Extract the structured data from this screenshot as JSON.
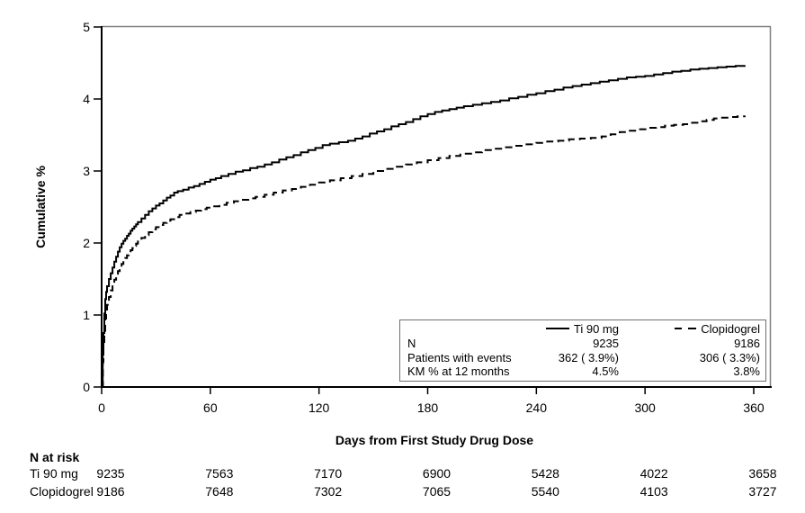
{
  "figure_type": "kaplan-meier-cumulative-incidence",
  "y_axis": {
    "label": "Cumulative %",
    "ticks": [
      "0",
      "1",
      "2",
      "3",
      "4",
      "5"
    ],
    "min": 0,
    "max": 5
  },
  "x_axis": {
    "label": "Days from First Study Drug Dose",
    "ticks": [
      "0",
      "60",
      "120",
      "180",
      "240",
      "300",
      "360"
    ],
    "min": 0,
    "max": 370
  },
  "legend": {
    "row_labels": [
      "N",
      "Patients with events",
      "KM % at 12 months"
    ],
    "series": [
      {
        "name": "Ti 90 mg",
        "line_style": "solid",
        "n": "9235",
        "events": "362 ( 3.9%)",
        "km_12m": "4.5%"
      },
      {
        "name": "Clopidogrel",
        "line_style": "dashed",
        "n": "9186",
        "events": "306 ( 3.3%)",
        "km_12m": "3.8%"
      }
    ]
  },
  "n_at_risk": {
    "title": "N at risk",
    "days": [
      0,
      60,
      120,
      180,
      240,
      300,
      360
    ],
    "rows": [
      {
        "label": "Ti 90 mg",
        "values": [
          "9235",
          "7563",
          "7170",
          "6900",
          "5428",
          "4022",
          "3658"
        ]
      },
      {
        "label": "Clopidogrel",
        "values": [
          "9186",
          "7648",
          "7302",
          "7065",
          "5540",
          "4103",
          "3727"
        ]
      }
    ]
  },
  "colors": {
    "curves": "#000000",
    "axis": "#000000",
    "frame": "#808080",
    "legend_border": "#6e6e6e",
    "background": "#ffffff"
  },
  "chart_data": {
    "type": "line",
    "subtype": "kaplan-meier-step",
    "title": "",
    "xlabel": "Days from First Study Drug Dose",
    "ylabel": "Cumulative %",
    "xlim": [
      0,
      370
    ],
    "ylim": [
      0,
      5
    ],
    "x_ticks": [
      0,
      60,
      120,
      180,
      240,
      300,
      360
    ],
    "y_ticks": [
      0,
      1,
      2,
      3,
      4,
      5
    ],
    "grid": false,
    "legend_position": "inside-bottom-right",
    "series": [
      {
        "name": "Ti 90 mg",
        "style": "solid",
        "color": "#000000",
        "n": 9235,
        "patients_with_events": 362,
        "events_pct": 3.9,
        "km_pct_12_months": 4.5,
        "points": [
          [
            0,
            0
          ],
          [
            0.6,
            0.45
          ],
          [
            1,
            0.75
          ],
          [
            1.5,
            1.02
          ],
          [
            2,
            1.22
          ],
          [
            2.5,
            1.32
          ],
          [
            3,
            1.4
          ],
          [
            4,
            1.5
          ],
          [
            5,
            1.58
          ],
          [
            6,
            1.66
          ],
          [
            7,
            1.74
          ],
          [
            8,
            1.81
          ],
          [
            9,
            1.88
          ],
          [
            10,
            1.94
          ],
          [
            11,
            1.99
          ],
          [
            12,
            2.03
          ],
          [
            13,
            2.06
          ],
          [
            14,
            2.1
          ],
          [
            15,
            2.13
          ],
          [
            16,
            2.17
          ],
          [
            17,
            2.2
          ],
          [
            18,
            2.23
          ],
          [
            19,
            2.26
          ],
          [
            20,
            2.29
          ],
          [
            22,
            2.34
          ],
          [
            24,
            2.39
          ],
          [
            26,
            2.44
          ],
          [
            28,
            2.48
          ],
          [
            30,
            2.52
          ],
          [
            32,
            2.55
          ],
          [
            34,
            2.59
          ],
          [
            36,
            2.63
          ],
          [
            38,
            2.66
          ],
          [
            40,
            2.7
          ],
          [
            42,
            2.72
          ],
          [
            45,
            2.74
          ],
          [
            48,
            2.77
          ],
          [
            51,
            2.79
          ],
          [
            54,
            2.82
          ],
          [
            57,
            2.85
          ],
          [
            60,
            2.88
          ],
          [
            63,
            2.9
          ],
          [
            66,
            2.93
          ],
          [
            70,
            2.96
          ],
          [
            74,
            2.99
          ],
          [
            78,
            3.01
          ],
          [
            82,
            3.04
          ],
          [
            86,
            3.06
          ],
          [
            90,
            3.09
          ],
          [
            94,
            3.12
          ],
          [
            98,
            3.16
          ],
          [
            102,
            3.19
          ],
          [
            106,
            3.22
          ],
          [
            110,
            3.26
          ],
          [
            114,
            3.29
          ],
          [
            118,
            3.32
          ],
          [
            122,
            3.36
          ],
          [
            126,
            3.38
          ],
          [
            131,
            3.4
          ],
          [
            136,
            3.42
          ],
          [
            140,
            3.45
          ],
          [
            144,
            3.48
          ],
          [
            148,
            3.52
          ],
          [
            152,
            3.55
          ],
          [
            156,
            3.58
          ],
          [
            160,
            3.62
          ],
          [
            164,
            3.65
          ],
          [
            168,
            3.68
          ],
          [
            172,
            3.72
          ],
          [
            176,
            3.76
          ],
          [
            180,
            3.79
          ],
          [
            184,
            3.82
          ],
          [
            188,
            3.84
          ],
          [
            192,
            3.86
          ],
          [
            196,
            3.88
          ],
          [
            200,
            3.9
          ],
          [
            205,
            3.92
          ],
          [
            210,
            3.94
          ],
          [
            215,
            3.96
          ],
          [
            220,
            3.98
          ],
          [
            225,
            4.01
          ],
          [
            230,
            4.03
          ],
          [
            235,
            4.06
          ],
          [
            240,
            4.08
          ],
          [
            245,
            4.11
          ],
          [
            250,
            4.13
          ],
          [
            255,
            4.16
          ],
          [
            260,
            4.18
          ],
          [
            265,
            4.2
          ],
          [
            270,
            4.22
          ],
          [
            275,
            4.24
          ],
          [
            280,
            4.26
          ],
          [
            285,
            4.28
          ],
          [
            290,
            4.3
          ],
          [
            295,
            4.31
          ],
          [
            300,
            4.32
          ],
          [
            305,
            4.34
          ],
          [
            310,
            4.36
          ],
          [
            315,
            4.38
          ],
          [
            320,
            4.39
          ],
          [
            325,
            4.41
          ],
          [
            330,
            4.42
          ],
          [
            335,
            4.43
          ],
          [
            340,
            4.44
          ],
          [
            345,
            4.45
          ],
          [
            350,
            4.46
          ],
          [
            355,
            4.47
          ]
        ]
      },
      {
        "name": "Clopidogrel",
        "style": "dashed",
        "color": "#000000",
        "n": 9186,
        "patients_with_events": 306,
        "events_pct": 3.3,
        "km_pct_12_months": 3.8,
        "points": [
          [
            0,
            0
          ],
          [
            0.7,
            0.35
          ],
          [
            1,
            0.55
          ],
          [
            1.5,
            0.78
          ],
          [
            2,
            0.95
          ],
          [
            2.5,
            1.06
          ],
          [
            3,
            1.14
          ],
          [
            4,
            1.25
          ],
          [
            5,
            1.34
          ],
          [
            6,
            1.42
          ],
          [
            7,
            1.49
          ],
          [
            8,
            1.55
          ],
          [
            9,
            1.61
          ],
          [
            10,
            1.66
          ],
          [
            11,
            1.71
          ],
          [
            12,
            1.75
          ],
          [
            13,
            1.79
          ],
          [
            14,
            1.83
          ],
          [
            15,
            1.86
          ],
          [
            16,
            1.9
          ],
          [
            17,
            1.93
          ],
          [
            18,
            1.96
          ],
          [
            19,
            1.99
          ],
          [
            20,
            2.02
          ],
          [
            22,
            2.07
          ],
          [
            24,
            2.11
          ],
          [
            26,
            2.15
          ],
          [
            28,
            2.19
          ],
          [
            30,
            2.22
          ],
          [
            32,
            2.25
          ],
          [
            34,
            2.28
          ],
          [
            36,
            2.31
          ],
          [
            38,
            2.33
          ],
          [
            40,
            2.36
          ],
          [
            43,
            2.39
          ],
          [
            46,
            2.41
          ],
          [
            49,
            2.43
          ],
          [
            52,
            2.45
          ],
          [
            55,
            2.47
          ],
          [
            58,
            2.49
          ],
          [
            61,
            2.51
          ],
          [
            65,
            2.53
          ],
          [
            69,
            2.56
          ],
          [
            73,
            2.58
          ],
          [
            77,
            2.6
          ],
          [
            81,
            2.62
          ],
          [
            85,
            2.64
          ],
          [
            90,
            2.67
          ],
          [
            95,
            2.7
          ],
          [
            100,
            2.73
          ],
          [
            105,
            2.75
          ],
          [
            110,
            2.78
          ],
          [
            115,
            2.81
          ],
          [
            120,
            2.84
          ],
          [
            126,
            2.87
          ],
          [
            132,
            2.9
          ],
          [
            138,
            2.93
          ],
          [
            144,
            2.96
          ],
          [
            150,
            3.0
          ],
          [
            156,
            3.03
          ],
          [
            162,
            3.06
          ],
          [
            168,
            3.09
          ],
          [
            174,
            3.12
          ],
          [
            180,
            3.15
          ],
          [
            186,
            3.18
          ],
          [
            192,
            3.21
          ],
          [
            198,
            3.24
          ],
          [
            204,
            3.26
          ],
          [
            210,
            3.29
          ],
          [
            216,
            3.31
          ],
          [
            222,
            3.33
          ],
          [
            228,
            3.35
          ],
          [
            234,
            3.37
          ],
          [
            240,
            3.39
          ],
          [
            246,
            3.41
          ],
          [
            252,
            3.42
          ],
          [
            258,
            3.44
          ],
          [
            264,
            3.45
          ],
          [
            270,
            3.46
          ],
          [
            276,
            3.48
          ],
          [
            281,
            3.51
          ],
          [
            286,
            3.54
          ],
          [
            291,
            3.56
          ],
          [
            296,
            3.58
          ],
          [
            301,
            3.6
          ],
          [
            306,
            3.61
          ],
          [
            311,
            3.63
          ],
          [
            316,
            3.64
          ],
          [
            321,
            3.65
          ],
          [
            326,
            3.67
          ],
          [
            331,
            3.69
          ],
          [
            334,
            3.71
          ],
          [
            338,
            3.73
          ],
          [
            342,
            3.74
          ],
          [
            347,
            3.75
          ],
          [
            351,
            3.76
          ],
          [
            355,
            3.77
          ]
        ]
      }
    ],
    "n_at_risk": {
      "days": [
        0,
        60,
        120,
        180,
        240,
        300,
        360
      ],
      "Ti 90 mg": [
        9235,
        7563,
        7170,
        6900,
        5428,
        4022,
        3658
      ],
      "Clopidogrel": [
        9186,
        7648,
        7302,
        7065,
        5540,
        4103,
        3727
      ]
    }
  }
}
